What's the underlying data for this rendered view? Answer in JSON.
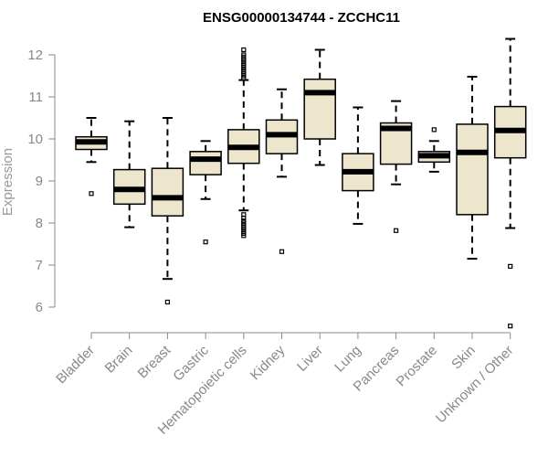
{
  "chart_data": {
    "type": "boxplot",
    "title": "ENSG00000134744 - ZCCHC11",
    "xlabel": "",
    "ylabel": "Expression",
    "ylim": [
      5.5,
      12.4
    ],
    "yticks": [
      6,
      7,
      8,
      9,
      10,
      11,
      12
    ],
    "box_fill": "#ede6cd",
    "categories": [
      "Bladder",
      "Brain",
      "Breast",
      "Gastric",
      "Hematopoietic cells",
      "Kidney",
      "Liver",
      "Lung",
      "Pancreas",
      "Prostate",
      "Skin",
      "Unknown / Other"
    ],
    "series": [
      {
        "name": "Bladder",
        "q1": 9.75,
        "median": 9.93,
        "q3": 10.05,
        "whisker_low": 9.45,
        "whisker_high": 10.5,
        "outliers": [
          8.7
        ]
      },
      {
        "name": "Brain",
        "q1": 8.45,
        "median": 8.8,
        "q3": 9.27,
        "whisker_low": 7.9,
        "whisker_high": 10.42,
        "outliers": []
      },
      {
        "name": "Breast",
        "q1": 8.17,
        "median": 8.6,
        "q3": 9.3,
        "whisker_low": 6.67,
        "whisker_high": 10.5,
        "outliers": [
          6.12
        ]
      },
      {
        "name": "Gastric",
        "q1": 9.15,
        "median": 9.52,
        "q3": 9.7,
        "whisker_low": 8.57,
        "whisker_high": 9.95,
        "outliers": [
          7.55
        ]
      },
      {
        "name": "Hematopoietic cells",
        "q1": 9.42,
        "median": 9.8,
        "q3": 10.22,
        "whisker_low": 8.3,
        "whisker_high": 11.4,
        "outliers": [
          7.7,
          7.75,
          7.8,
          7.85,
          7.9,
          7.95,
          8.0,
          8.05,
          8.12,
          8.2,
          11.45,
          11.5,
          11.55,
          11.6,
          11.65,
          11.7,
          11.75,
          11.8,
          11.85,
          11.9,
          11.95,
          12.0,
          12.12
        ]
      },
      {
        "name": "Kidney",
        "q1": 9.65,
        "median": 10.1,
        "q3": 10.45,
        "whisker_low": 9.1,
        "whisker_high": 11.18,
        "outliers": [
          7.32
        ]
      },
      {
        "name": "Liver",
        "q1": 10.0,
        "median": 11.1,
        "q3": 11.42,
        "whisker_low": 9.38,
        "whisker_high": 12.12,
        "outliers": []
      },
      {
        "name": "Lung",
        "q1": 8.77,
        "median": 9.22,
        "q3": 9.65,
        "whisker_low": 7.98,
        "whisker_high": 10.75,
        "outliers": []
      },
      {
        "name": "Pancreas",
        "q1": 9.4,
        "median": 10.25,
        "q3": 10.38,
        "whisker_low": 8.92,
        "whisker_high": 10.9,
        "outliers": [
          7.82
        ]
      },
      {
        "name": "Prostate",
        "q1": 9.45,
        "median": 9.6,
        "q3": 9.7,
        "whisker_low": 9.22,
        "whisker_high": 9.95,
        "outliers": [
          10.22
        ]
      },
      {
        "name": "Skin",
        "q1": 8.2,
        "median": 9.68,
        "q3": 10.35,
        "whisker_low": 7.15,
        "whisker_high": 11.48,
        "outliers": []
      },
      {
        "name": "Unknown / Other",
        "q1": 9.55,
        "median": 10.2,
        "q3": 10.77,
        "whisker_low": 7.88,
        "whisker_high": 12.38,
        "outliers": [
          6.97,
          5.55
        ]
      }
    ]
  }
}
